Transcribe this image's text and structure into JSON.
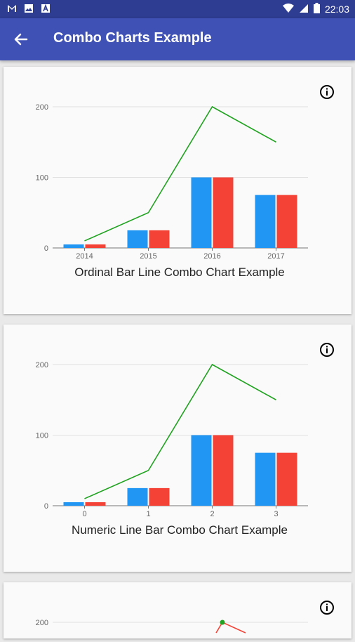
{
  "status_bar": {
    "icons": [
      "gmail-icon",
      "image-icon",
      "text-icon"
    ],
    "time": "22:03",
    "right_icons": [
      "wifi-icon",
      "signal-icon",
      "battery-icon"
    ]
  },
  "app_bar": {
    "title": "Combo Charts Example",
    "back_icon": "arrow-back-icon"
  },
  "colors": {
    "blue": "#2196f3",
    "red": "#f44336",
    "green": "#21a321",
    "appbar": "#3f51b5",
    "statusbar": "#2e3c91"
  },
  "cards": [
    {
      "info_icon": "info-icon",
      "caption": "Ordinal Bar Line Combo Chart Example"
    },
    {
      "info_icon": "info-icon",
      "caption": "Numeric Line Bar Combo Chart Example"
    },
    {
      "info_icon": "info-icon",
      "caption": ""
    }
  ],
  "chart_data": [
    {
      "type": "bar",
      "categories": [
        "2014",
        "2015",
        "2016",
        "2017"
      ],
      "yticks": [
        "0",
        "100",
        "200"
      ],
      "ylim": [
        0,
        200
      ],
      "series": [
        {
          "type": "bar",
          "color": "#2196f3",
          "values": [
            5,
            25,
            100,
            75
          ]
        },
        {
          "type": "bar",
          "color": "#f44336",
          "values": [
            5,
            25,
            100,
            75
          ]
        },
        {
          "type": "line",
          "color": "#21a321",
          "values": [
            10,
            50,
            200,
            150
          ]
        }
      ]
    },
    {
      "type": "bar",
      "categories": [
        "0",
        "1",
        "2",
        "3"
      ],
      "yticks": [
        "0",
        "100",
        "200"
      ],
      "ylim": [
        0,
        200
      ],
      "series": [
        {
          "type": "bar",
          "color": "#2196f3",
          "values": [
            5,
            25,
            100,
            75
          ]
        },
        {
          "type": "bar",
          "color": "#f44336",
          "values": [
            5,
            25,
            100,
            75
          ]
        },
        {
          "type": "line",
          "color": "#21a321",
          "values": [
            10,
            50,
            200,
            150
          ]
        }
      ]
    },
    {
      "type": "line",
      "yticks": [
        "200"
      ],
      "ylim": [
        0,
        200
      ],
      "series": [
        {
          "type": "line",
          "color": "#21a321",
          "values": [
            200
          ]
        },
        {
          "type": "line",
          "color": "#f44336",
          "values": [
            200
          ]
        }
      ]
    }
  ]
}
